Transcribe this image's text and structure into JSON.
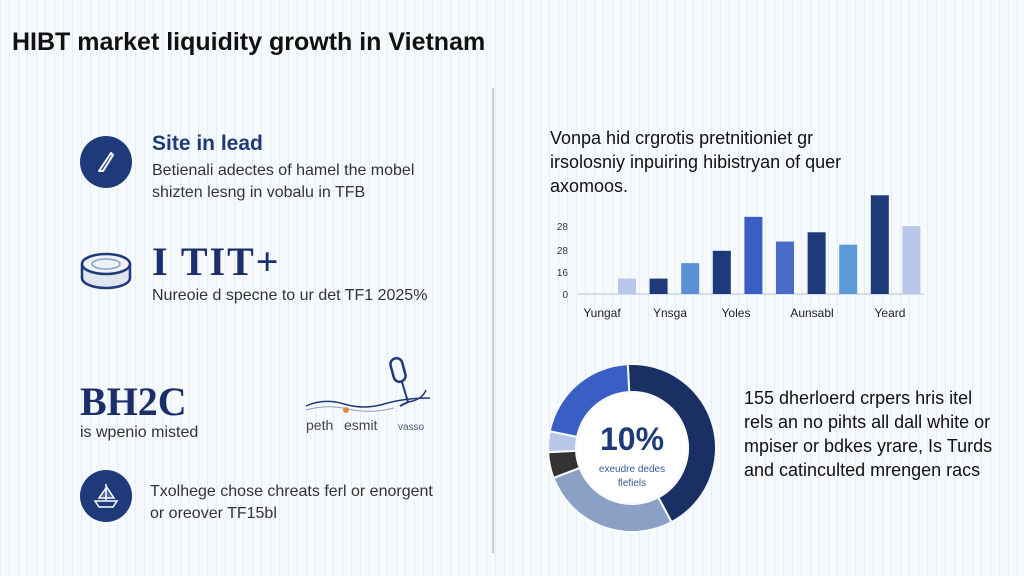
{
  "page": {
    "title": "HIBT market liquidity growth in Vietnam"
  },
  "left": {
    "item1": {
      "icon": "pen-icon",
      "heading": "Site in lead",
      "line1": "Betienali adectes of hamel the mobel",
      "line2": "shizten lesng in vobalu in TFB"
    },
    "item2": {
      "icon": "coin-stack-icon",
      "number": "I TIT+",
      "desc": "Nureoie d specne to ur det TF1 2025%"
    },
    "item3": {
      "brand": "BH2C",
      "sub": "is wpenio misted",
      "illus_label1": "peth",
      "illus_label2": "esmit",
      "illus_label3": "vasso",
      "illus_icon": "microphone-icon"
    },
    "item4": {
      "icon": "ship-icon",
      "line1": "Txolhege chose chreats ferl or enorgent",
      "line2": "or oreover TF15bl"
    }
  },
  "right": {
    "chart_text": "Vonpa hid crgrotis pretnitioniet gr irsolosniy inpuiring hibistryan of quer axomoos.",
    "donut_text": "155 dherloerd crpers hris itel rels an no pihts all dall white or mpiser or bdkes yrare, Is Turds and catinculted mrengen racs"
  },
  "colors": {
    "navy": "#1f3a7a",
    "dark_navy": "#1a2f63",
    "royal": "#3a5fc4",
    "light_blue": "#b9c8ea",
    "sky": "#5b8fd6",
    "mid_blue": "#4a6cc9",
    "slate": "#8aa0c4",
    "charcoal": "#333333"
  },
  "chart_data": [
    {
      "type": "bar",
      "y_ticks": [
        "0",
        "16",
        "28",
        "28"
      ],
      "x_labels": [
        "Yungaf",
        "Ynsga",
        "Yoles",
        "Aunsabl",
        "Yeard"
      ],
      "values": [
        5,
        5,
        10,
        14,
        25,
        17,
        20,
        16,
        32,
        22
      ],
      "bar_colors": [
        "#b9c8ea",
        "#1f3a7a",
        "#5b8fd6",
        "#1f3a7a",
        "#3a5fc4",
        "#4a6cc9",
        "#1f3a7a",
        "#5b9ad8",
        "#1f3a7a",
        "#b9c8ea"
      ],
      "ylim": [
        0,
        35
      ]
    },
    {
      "type": "pie",
      "center_value": "10%",
      "center_line1": "exeudre dedes",
      "center_line2": "flefiels",
      "slices": [
        {
          "value": 43,
          "color": "#1a2f63"
        },
        {
          "value": 27,
          "color": "#8aa0c4"
        },
        {
          "value": 5,
          "color": "#333333"
        },
        {
          "value": 4,
          "color": "#b9c8ea"
        },
        {
          "value": 21,
          "color": "#3a5fc4"
        }
      ]
    }
  ]
}
